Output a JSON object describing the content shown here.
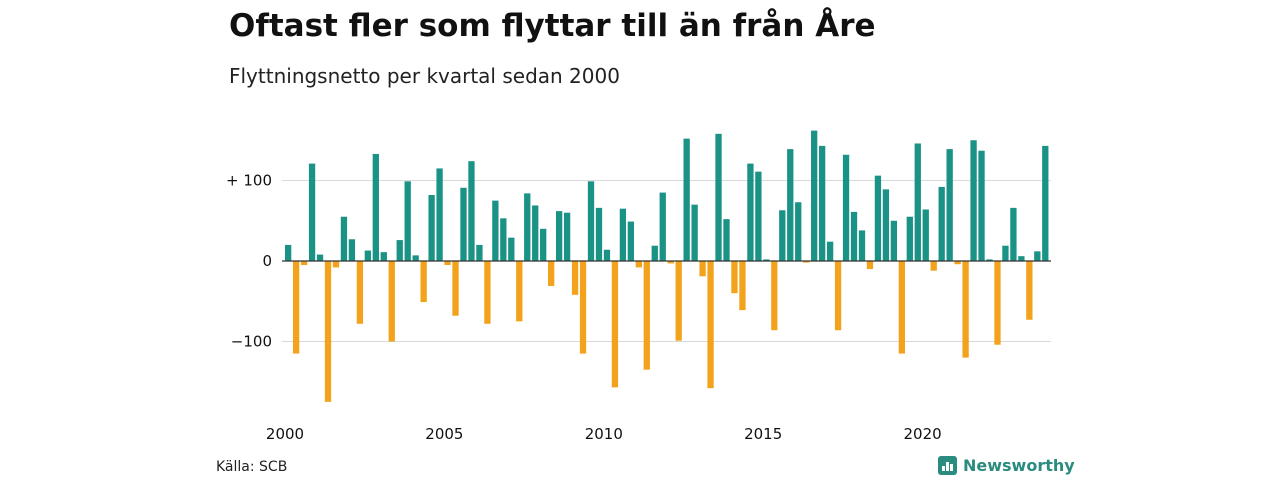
{
  "header": {
    "title": "Oftast fler som flyttar till än från Åre",
    "subtitle": "Flyttningsnetto per kvartal sedan 2000"
  },
  "footer": {
    "source": "Källa: SCB",
    "brand": "Newsworthy",
    "brand_icon": "newsworthy-logo-icon"
  },
  "colors": {
    "positive": "#1b9286",
    "negative": "#f2a31b",
    "grid": "#d9d9d9",
    "zero_line": "#333333",
    "brand": "#2a8c7e"
  },
  "chart_data": {
    "type": "bar",
    "title": "Oftast fler som flyttar till än från Åre",
    "subtitle": "Flyttningsnetto per kvartal sedan 2000",
    "xlabel": "",
    "ylabel": "",
    "grid": true,
    "x_ticks": [
      "2000",
      "2005",
      "2010",
      "2015",
      "2020"
    ],
    "y_ticks": [
      {
        "value": 100,
        "label": "+ 100"
      },
      {
        "value": 0,
        "label": "0"
      },
      {
        "value": -100,
        "label": "−100"
      }
    ],
    "ylim": [
      -180,
      160
    ],
    "start_year": 2000,
    "periods_per_year": 4,
    "values": [
      20,
      -115,
      -5,
      121,
      8,
      -175,
      -8,
      55,
      27,
      -78,
      13,
      133,
      11,
      -100,
      26,
      99,
      7,
      -51,
      82,
      115,
      -5,
      -68,
      91,
      124,
      20,
      -78,
      75,
      53,
      29,
      -75,
      84,
      69,
      40,
      -31,
      62,
      60,
      -42,
      -115,
      99,
      66,
      14,
      -157,
      65,
      49,
      -8,
      -135,
      19,
      85,
      -3,
      -99,
      152,
      70,
      -19,
      -158,
      158,
      52,
      -40,
      -61,
      121,
      111,
      2,
      -86,
      63,
      139,
      73,
      -2,
      162,
      143,
      24,
      -86,
      132,
      61,
      38,
      -10,
      106,
      89,
      50,
      -115,
      55,
      146,
      64,
      -12,
      92,
      139,
      -4,
      -120,
      150,
      137,
      2,
      -104,
      19,
      66,
      6,
      -73,
      12,
      143
    ]
  }
}
